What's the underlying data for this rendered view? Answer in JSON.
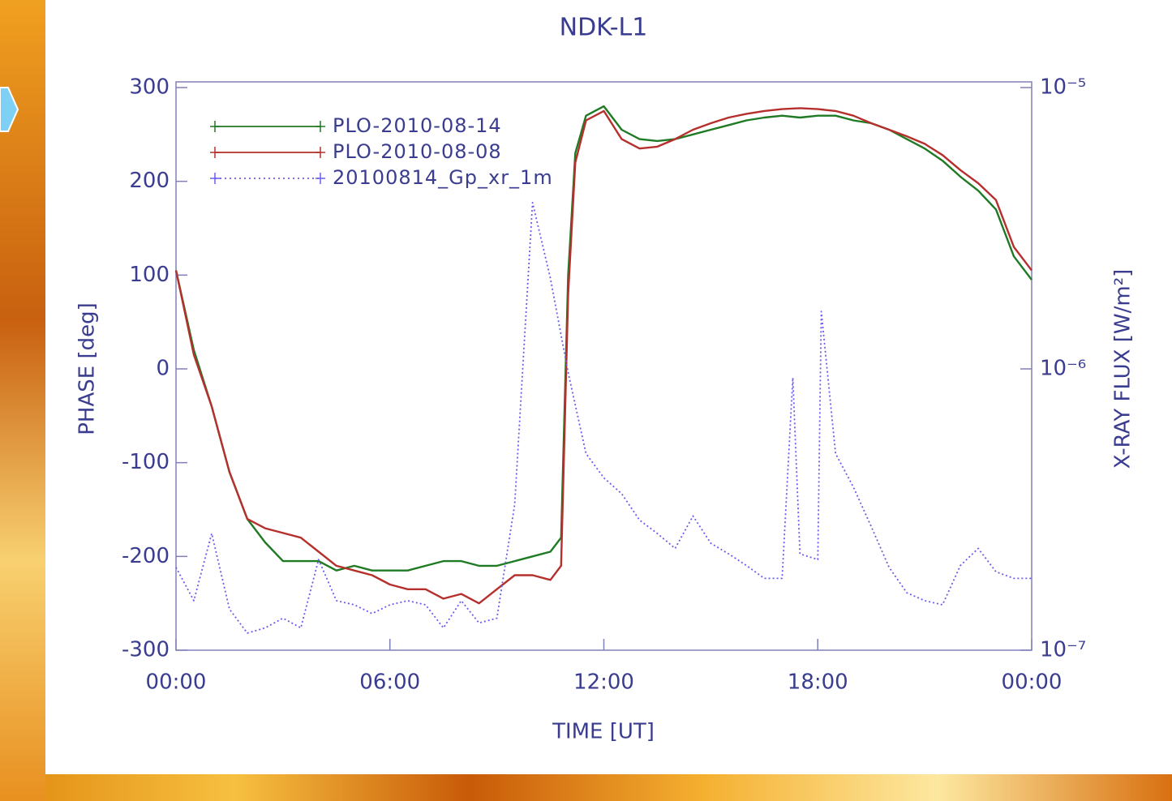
{
  "chart_data": {
    "type": "line",
    "title": "NDK-L1",
    "x_label": "TIME [UT]",
    "y_label": "PHASE [deg]",
    "y2_label": "X-RAY FLUX [W/m²]",
    "xlim": [
      0,
      24
    ],
    "xticks": [
      {
        "value": 0,
        "label": "00:00"
      },
      {
        "value": 6,
        "label": "06:00"
      },
      {
        "value": 12,
        "label": "12:00"
      },
      {
        "value": 18,
        "label": "18:00"
      },
      {
        "value": 24,
        "label": "00:00"
      }
    ],
    "ylim": [
      -300,
      300
    ],
    "yticks": [
      -300,
      -200,
      -100,
      0,
      100,
      200,
      300
    ],
    "y2lim": [
      1e-07,
      1e-05
    ],
    "y2_log": true,
    "y2ticks": [
      {
        "value": 1e-07,
        "label": "10⁻⁷"
      },
      {
        "value": 1e-06,
        "label": "10⁻⁶"
      },
      {
        "value": 1e-05,
        "label": "10⁻⁵"
      }
    ],
    "legend": "upper left",
    "series": [
      {
        "name": "PLO-2010-08-14",
        "color": "#1f7a24",
        "style": "solid",
        "x": [
          0,
          0.5,
          1,
          1.5,
          2,
          2.5,
          3,
          3.5,
          4,
          4.5,
          5,
          5.5,
          6,
          6.5,
          7,
          7.5,
          8,
          8.5,
          9,
          9.5,
          10,
          10.5,
          10.8,
          11,
          11.2,
          11.5,
          12,
          12.5,
          13,
          13.5,
          14,
          14.5,
          15,
          15.5,
          16,
          16.5,
          17,
          17.5,
          18,
          18.5,
          19,
          19.5,
          20,
          20.5,
          21,
          21.5,
          22,
          22.5,
          23,
          23.5,
          24
        ],
        "values": [
          105,
          20,
          -40,
          -110,
          -160,
          -185,
          -205,
          -205,
          -205,
          -215,
          -210,
          -215,
          -215,
          -215,
          -210,
          -205,
          -205,
          -210,
          -210,
          -205,
          -200,
          -195,
          -180,
          100,
          230,
          270,
          280,
          255,
          245,
          243,
          245,
          250,
          255,
          260,
          265,
          268,
          270,
          268,
          270,
          270,
          265,
          262,
          255,
          245,
          235,
          222,
          205,
          190,
          170,
          120,
          95
        ]
      },
      {
        "name": "PLO-2010-08-08",
        "color": "#b5302c",
        "style": "solid",
        "x": [
          0,
          0.5,
          1,
          1.5,
          2,
          2.5,
          3,
          3.5,
          4,
          4.5,
          5,
          5.5,
          6,
          6.5,
          7,
          7.5,
          8,
          8.5,
          9,
          9.5,
          10,
          10.5,
          10.8,
          11,
          11.2,
          11.5,
          12,
          12.5,
          13,
          13.5,
          14,
          14.5,
          15,
          15.5,
          16,
          16.5,
          17,
          17.5,
          18,
          18.5,
          19,
          19.5,
          20,
          20.5,
          21,
          21.5,
          22,
          22.5,
          23,
          23.5,
          24
        ],
        "values": [
          105,
          15,
          -40,
          -110,
          -160,
          -170,
          -175,
          -180,
          -195,
          -210,
          -215,
          -220,
          -230,
          -235,
          -235,
          -245,
          -240,
          -250,
          -235,
          -220,
          -220,
          -225,
          -210,
          80,
          220,
          265,
          275,
          245,
          235,
          237,
          245,
          255,
          262,
          268,
          272,
          275,
          277,
          278,
          277,
          275,
          270,
          262,
          255,
          248,
          240,
          228,
          212,
          198,
          180,
          130,
          105
        ]
      },
      {
        "name": "20100814_Gp_xr_1m",
        "color": "#6b5cf0",
        "style": "dotted",
        "axis": "y2",
        "x": [
          0,
          0.5,
          1,
          1.5,
          2,
          2.5,
          3,
          3.5,
          4,
          4.5,
          5,
          5.5,
          6,
          6.5,
          7,
          7.5,
          8,
          8.5,
          9,
          9.5,
          10,
          10.5,
          11,
          11.5,
          12,
          12.5,
          13,
          13.5,
          14,
          14.5,
          15,
          15.5,
          16,
          16.5,
          17,
          17.3,
          17.5,
          18,
          18.1,
          18.5,
          19,
          19.5,
          20,
          20.5,
          21,
          21.5,
          22,
          22.5,
          23,
          23.5,
          24
        ],
        "values": [
          1.97e-07,
          1.5e-07,
          2.6e-07,
          1.4e-07,
          1.15e-07,
          1.2e-07,
          1.3e-07,
          1.2e-07,
          2.1e-07,
          1.5e-07,
          1.45e-07,
          1.35e-07,
          1.45e-07,
          1.5e-07,
          1.45e-07,
          1.2e-07,
          1.5e-07,
          1.25e-07,
          1.3e-07,
          3.3e-07,
          3.9e-06,
          2.1e-06,
          9.7e-07,
          5e-07,
          4.1e-07,
          3.6e-07,
          2.9e-07,
          2.6e-07,
          2.3e-07,
          3e-07,
          2.4e-07,
          2.2e-07,
          2e-07,
          1.8e-07,
          1.8e-07,
          9.3e-07,
          2.2e-07,
          2.1e-07,
          1.6e-06,
          5e-07,
          3.8e-07,
          2.75e-07,
          1.97e-07,
          1.6e-07,
          1.5e-07,
          1.45e-07,
          2e-07,
          2.3e-07,
          1.9e-07,
          1.8e-07,
          1.8e-07
        ]
      }
    ]
  }
}
